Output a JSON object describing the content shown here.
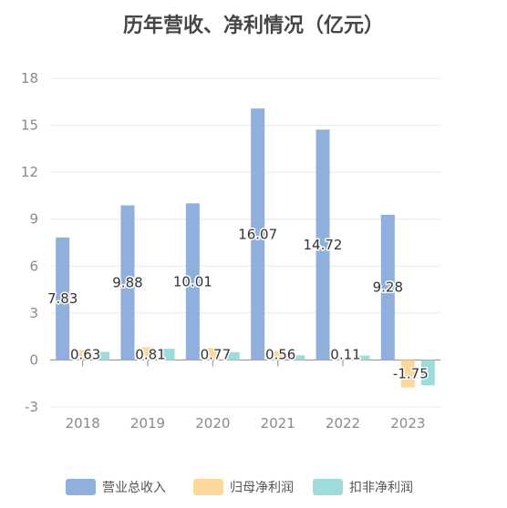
{
  "title": "历年营收、净利情况（亿元）",
  "colors": {
    "grid": "#e8e8e8",
    "zero_axis": "#8a8a8a"
  },
  "chart_data": {
    "type": "bar",
    "title": "历年营收、净利情况（亿元）",
    "categories": [
      "2018",
      "2019",
      "2020",
      "2021",
      "2022",
      "2023"
    ],
    "yticks": [
      "-3",
      "0",
      "3",
      "6",
      "9",
      "12",
      "15",
      "18"
    ],
    "ylim": [
      -3,
      18
    ],
    "grid": true,
    "legend_position": "bottom",
    "series": [
      {
        "name": "营业总收入",
        "color": "#8fb0dc",
        "values": [
          7.83,
          9.88,
          10.01,
          16.07,
          14.72,
          9.28
        ],
        "labels": [
          "7.83",
          "9.88",
          "10.01",
          "16.07",
          "14.72",
          "9.28"
        ]
      },
      {
        "name": "归母净利润",
        "color": "#fdd89a",
        "values": [
          0.63,
          0.81,
          0.77,
          0.56,
          0.11,
          -1.75
        ],
        "labels": [
          "0.63",
          "0.81",
          "0.77",
          "0.56",
          "0.11",
          "-1.75"
        ]
      },
      {
        "name": "扣非净利润",
        "color": "#9edcdb",
        "values": [
          0.52,
          0.72,
          0.5,
          0.3,
          0.28,
          -1.62
        ],
        "labels": []
      }
    ]
  }
}
